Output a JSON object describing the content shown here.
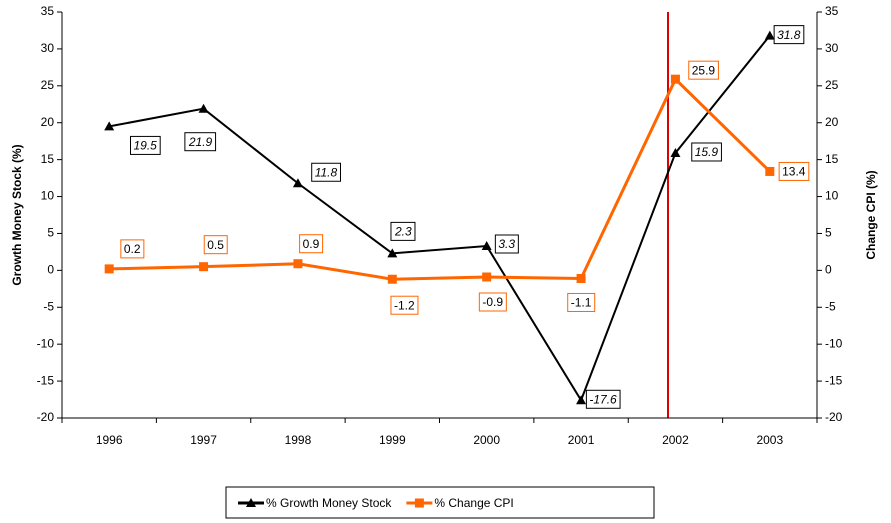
{
  "chart_data": {
    "type": "line",
    "categories": [
      "1996",
      "1997",
      "1998",
      "1999",
      "2000",
      "2001",
      "2002",
      "2003"
    ],
    "y_label": "Growth Money Stock (%)",
    "y2_label": "Change CPI (%)",
    "ylim": [
      -20,
      35
    ],
    "yticks": [
      -20,
      -15,
      -10,
      -5,
      0,
      5,
      10,
      15,
      20,
      25,
      30,
      35
    ],
    "y2lim": [
      -20,
      35
    ],
    "y2ticks": [
      -20,
      -15,
      -10,
      -5,
      0,
      5,
      10,
      15,
      20,
      25,
      30,
      35
    ],
    "grid": false,
    "legend": "bottom",
    "series": [
      {
        "name": "% Growth Money Stock",
        "color": "#000000",
        "marker": "triangle",
        "values": [
          19.5,
          21.9,
          11.8,
          2.3,
          3.3,
          -17.6,
          15.9,
          31.8
        ]
      },
      {
        "name": "% Change CPI",
        "color": "#ff6600",
        "marker": "square",
        "axis": "y2",
        "values": [
          0.2,
          0.5,
          0.9,
          -1.2,
          -0.9,
          -1.1,
          25.9,
          13.4
        ]
      }
    ]
  }
}
